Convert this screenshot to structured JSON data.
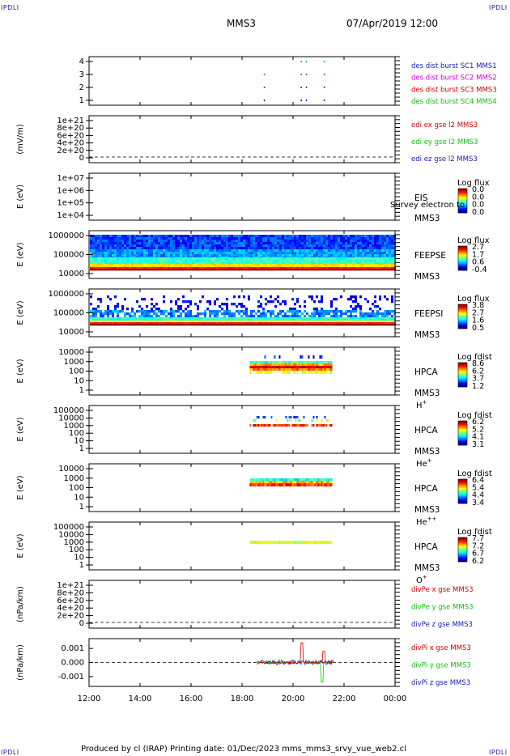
{
  "corner_tag": "IPDLI",
  "header": {
    "left": "MMS3",
    "right": "07/Apr/2019 12:00"
  },
  "footer": "Produced by cl (IRAP)   Printing date: 01/Dec/2023   mms_mms3_srvy_vue_web2.cl",
  "colors": {
    "blue": "#1818b8",
    "magenta": "#d000d0",
    "red": "#d00000",
    "green": "#10c010"
  },
  "chart_data": [
    {
      "type": "scatter",
      "id": "burst",
      "yticks": [
        "1",
        "2",
        "3",
        "4"
      ],
      "legend": [
        {
          "text": "des dist burst SC1 MMS1",
          "color": "blue"
        },
        {
          "text": "des dist burst SC2 MMS2",
          "color": "magenta"
        },
        {
          "text": "des dist burst SC3 MMS3",
          "color": "red"
        },
        {
          "text": "des dist burst SC4 MMS4",
          "color": "green"
        }
      ],
      "series": [
        {
          "level": 4,
          "color": "green",
          "x": [
            20.3,
            20.5,
            21.2
          ]
        },
        {
          "level": 3,
          "color": "magenta",
          "x": [
            18.85,
            20.3,
            20.5,
            21.2
          ]
        },
        {
          "level": 2,
          "color": "red",
          "x": [
            18.85,
            20.3,
            20.5,
            21.2
          ]
        },
        {
          "level": 1,
          "color": "blue",
          "x": [
            18.85,
            20.3,
            20.5,
            21.2
          ]
        }
      ]
    },
    {
      "type": "line",
      "id": "edi",
      "ylabel": "(mV/m)",
      "yticks": [
        "1e+21",
        "8e+20",
        "6e+20",
        "4e+20",
        "2e+20",
        "0"
      ],
      "legend": [
        {
          "text": "edi ex gse l2 MMS3",
          "color": "red"
        },
        {
          "text": "edi ey gse l2 MMS3",
          "color": "green"
        },
        {
          "text": "edi ez gse l2 MMS3",
          "color": "blue"
        }
      ]
    },
    {
      "type": "heatmap",
      "id": "eis",
      "ylabel": "E (eV)",
      "yticks": [
        "1e+07",
        "1e+06",
        "1e+05",
        "1e+04"
      ],
      "labels": [
        "EIS",
        "MMS3"
      ],
      "overlay": "Survey electron to",
      "colorbar": {
        "title": "Log flux",
        "ticks": [
          "0.0",
          "0.0",
          "0.0",
          "0.0"
        ]
      }
    },
    {
      "type": "heatmap",
      "id": "feepse",
      "ylabel": "E (eV)",
      "yticks": [
        "1000000",
        "100000",
        "10000"
      ],
      "labels": [
        "FEEPSE",
        "MMS3"
      ],
      "colorbar": {
        "title": "Log flux",
        "ticks": [
          "2.7",
          "1.7",
          "0.6",
          "-0.4"
        ]
      }
    },
    {
      "type": "heatmap",
      "id": "feepsi",
      "ylabel": "E (eV)",
      "yticks": [
        "1000000",
        "100000",
        "10000"
      ],
      "labels": [
        "FEEPSI",
        "MMS3"
      ],
      "colorbar": {
        "title": "Log flux",
        "ticks": [
          "3.8",
          "2.7",
          "1.6",
          "0.5"
        ]
      }
    },
    {
      "type": "heatmap",
      "id": "hpca_h",
      "ylabel": "E (eV)",
      "yticks": [
        "10000",
        "1000",
        "100",
        "10",
        "1"
      ],
      "labels": [
        "HPCA",
        "MMS3"
      ],
      "species": {
        "base": "H",
        "sup": "+"
      },
      "colorbar": {
        "title": "Log fdist",
        "ticks": [
          "8.6",
          "6.2",
          "3.7",
          "1.2"
        ]
      },
      "x_range": [
        18.3,
        21.5
      ]
    },
    {
      "type": "heatmap",
      "id": "hpca_he1",
      "ylabel": "E (eV)",
      "yticks": [
        "100000",
        "10000",
        "1000",
        "100",
        "10",
        "1"
      ],
      "labels": [
        "HPCA",
        "MMS3"
      ],
      "species": {
        "base": "He",
        "sup": "+"
      },
      "colorbar": {
        "title": "Log fdist",
        "ticks": [
          "6.2",
          "5.2",
          "4.1",
          "3.1"
        ]
      },
      "x_range": [
        18.3,
        21.5
      ]
    },
    {
      "type": "heatmap",
      "id": "hpca_he2",
      "ylabel": "E (eV)",
      "yticks": [
        "10000",
        "1000",
        "100",
        "10",
        "1"
      ],
      "labels": [
        "HPCA",
        "MMS3"
      ],
      "species": {
        "base": "He",
        "sup": "++"
      },
      "colorbar": {
        "title": "Log fdist",
        "ticks": [
          "6.4",
          "5.4",
          "4.4",
          "3.4"
        ]
      },
      "x_range": [
        18.3,
        21.5
      ]
    },
    {
      "type": "heatmap",
      "id": "hpca_o",
      "ylabel": "E (eV)",
      "yticks": [
        "100000",
        "10000",
        "1000",
        "100",
        "10",
        "1"
      ],
      "labels": [
        "HPCA",
        "MMS3"
      ],
      "species": {
        "base": "O",
        "sup": "+"
      },
      "colorbar": {
        "title": "Log fdist",
        "ticks": [
          "7.7",
          "7.2",
          "6.7",
          "6.2"
        ]
      },
      "x_range": [
        18.3,
        21.5
      ]
    },
    {
      "type": "line",
      "id": "divpe",
      "ylabel": "(nPa/km)",
      "yticks": [
        "1e+21",
        "8e+20",
        "6e+20",
        "4e+20",
        "2e+20",
        "0"
      ],
      "legend": [
        {
          "text": "divPe x gse MMS3",
          "color": "red"
        },
        {
          "text": "divPe y gse MMS3",
          "color": "green"
        },
        {
          "text": "divPe z gse MMS3",
          "color": "blue"
        }
      ]
    },
    {
      "type": "line",
      "id": "divpi",
      "ylabel": "(nPa/km)",
      "yticks": [
        "0.001",
        "0.000",
        "-0.001"
      ],
      "ylim": [
        -0.0017,
        0.0017
      ],
      "x_range": [
        18.6,
        21.6
      ],
      "legend": [
        {
          "text": "divPi x gse MMS3",
          "color": "red"
        },
        {
          "text": "divPi y gse MMS3",
          "color": "green"
        },
        {
          "text": "divPi z gse MMS3",
          "color": "blue"
        }
      ]
    }
  ],
  "xaxis": {
    "ticks": [
      "12:00",
      "14:00",
      "16:00",
      "18:00",
      "20:00",
      "22:00",
      "00:00"
    ],
    "range": [
      12,
      24
    ]
  }
}
